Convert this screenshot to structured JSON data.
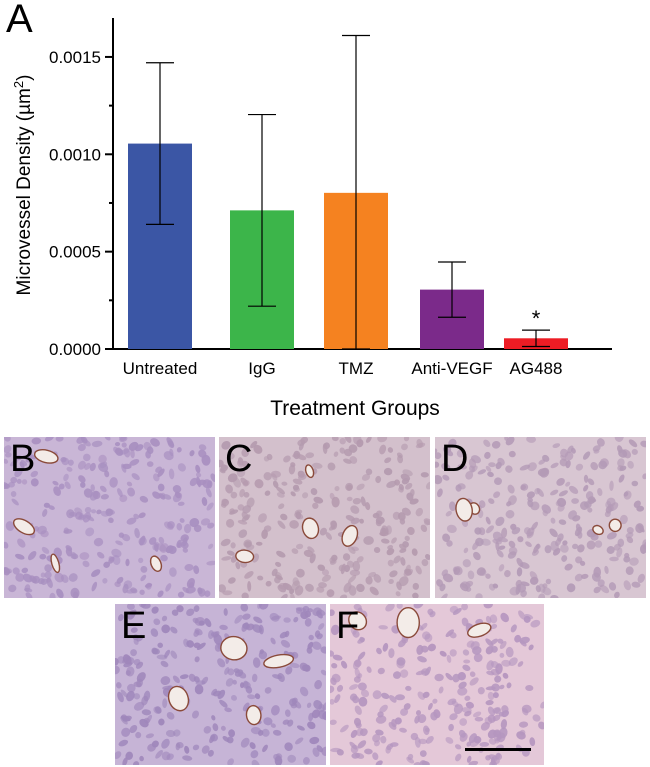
{
  "figure": {
    "panel_a_label": "A",
    "histology_panels": [
      {
        "label": "B",
        "tint": "#a88fc0",
        "base": "#c9b6d6"
      },
      {
        "label": "C",
        "tint": "#b49aae",
        "base": "#d3c0cc"
      },
      {
        "label": "D",
        "tint": "#b39ab6",
        "base": "#d8c6d2"
      },
      {
        "label": "E",
        "tint": "#9f87bb",
        "base": "#c6b4d6"
      },
      {
        "label": "F",
        "tint": "#b596bf",
        "base": "#e4c8d8"
      }
    ]
  },
  "chart_data": {
    "type": "bar",
    "title": "",
    "xlabel": "Treatment Groups",
    "ylabel_main": "Microvessel Density (µm",
    "ylabel_sup": "2",
    "ylabel_end": ")",
    "ylim": [
      0,
      0.0017
    ],
    "yticks": [
      0.0,
      0.0005,
      0.001,
      0.0015
    ],
    "ytick_labels": [
      "0.0000",
      "0.0005",
      "0.0010",
      "0.0015"
    ],
    "categories": [
      "Untreated",
      "IgG",
      "TMZ",
      "Anti-VEGF",
      "AG488"
    ],
    "values": [
      0.001055,
      0.000712,
      0.000802,
      0.000305,
      5.5e-05
    ],
    "error": [
      0.000415,
      0.000492,
      0.000808,
      0.000142,
      4.2e-05
    ],
    "colors": [
      "#3b56a5",
      "#3cb54a",
      "#f58220",
      "#7b2a8a",
      "#ed1c24"
    ],
    "annotations": [
      {
        "category": "AG488",
        "text": "*"
      }
    ]
  }
}
